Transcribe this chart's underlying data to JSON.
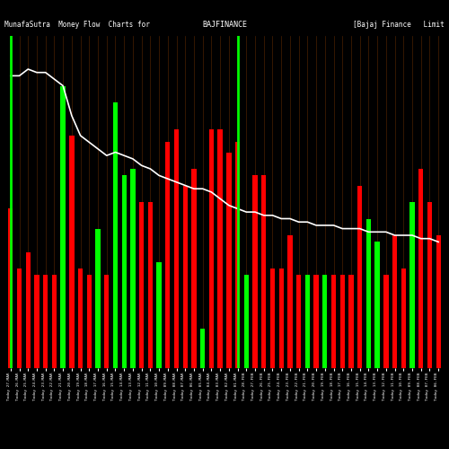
{
  "title_left": "MunafaSutra  Money Flow  Charts for",
  "title_mid": "BAJFINANCE",
  "title_right": "[Bajaj Finance   Limit",
  "bg_color": "#000000",
  "bar_colors": [
    "red",
    "red",
    "red",
    "red",
    "red",
    "red",
    "green",
    "red",
    "red",
    "red",
    "green",
    "red",
    "green",
    "green",
    "green",
    "red",
    "red",
    "green",
    "red",
    "red",
    "red",
    "red",
    "green",
    "red",
    "red",
    "red",
    "red",
    "green",
    "red",
    "red",
    "red",
    "red",
    "red",
    "red",
    "green",
    "red",
    "green",
    "red",
    "red",
    "red",
    "red",
    "green",
    "green",
    "red",
    "red",
    "red",
    "green",
    "red",
    "red",
    "red"
  ],
  "bar_heights": [
    48,
    30,
    35,
    28,
    28,
    28,
    85,
    70,
    30,
    28,
    42,
    28,
    80,
    58,
    60,
    50,
    50,
    32,
    68,
    72,
    55,
    60,
    12,
    72,
    72,
    65,
    68,
    28,
    58,
    58,
    30,
    30,
    40,
    28,
    28,
    28,
    28,
    28,
    28,
    28,
    55,
    45,
    38,
    28,
    40,
    30,
    50,
    60,
    50,
    40
  ],
  "line_y_raw": [
    88,
    88,
    90,
    89,
    89,
    87,
    85,
    76,
    70,
    68,
    66,
    64,
    65,
    64,
    63,
    61,
    60,
    58,
    57,
    56,
    55,
    54,
    54,
    53,
    51,
    49,
    48,
    47,
    47,
    46,
    46,
    45,
    45,
    44,
    44,
    43,
    43,
    43,
    42,
    42,
    42,
    41,
    41,
    41,
    40,
    40,
    40,
    39,
    39,
    38
  ],
  "vline_positions": [
    0,
    26
  ],
  "grid_color": "#4a2000",
  "line_color": "#ffffff",
  "green_color": "#00ff00",
  "red_color": "#ff0000",
  "ylim_max": 100,
  "labels": [
    "Today 27-MAR",
    "Today 26-MAR",
    "Today 25-MAR",
    "Today 24-MAR",
    "Today 23-MAR",
    "Today 22-MAR",
    "Today 21-MAR",
    "Today 20-MAR",
    "Today 19-MAR",
    "Today 18-MAR",
    "Today 17-MAR",
    "Today 16-MAR",
    "Today 15-MAR",
    "Today 14-MAR",
    "Today 13-MAR",
    "Today 12-MAR",
    "Today 11-MAR",
    "Today 10-MAR",
    "Today 09-MAR",
    "Today 08-MAR",
    "Today 07-MAR",
    "Today 06-MAR",
    "Today 05-MAR",
    "Today 04-MAR",
    "Today 03-MAR",
    "Today 02-MAR",
    "Today 01-MAR",
    "Today 28-FEB",
    "Today 27-FEB",
    "Today 26-FEB",
    "Today 25-FEB",
    "Today 24-FEB",
    "Today 23-FEB",
    "Today 22-FEB",
    "Today 21-FEB",
    "Today 20-FEB",
    "Today 19-FEB",
    "Today 18-FEB",
    "Today 17-FEB",
    "Today 16-FEB",
    "Today 15-FEB",
    "Today 14-FEB",
    "Today 13-FEB",
    "Today 12-FEB",
    "Today 11-FEB",
    "Today 10-FEB",
    "Today 09-FEB",
    "Today 08-FEB",
    "Today 07-FEB",
    "Today 06-FEB"
  ],
  "title_fontsize": 5.5,
  "label_fontsize": 3.2
}
